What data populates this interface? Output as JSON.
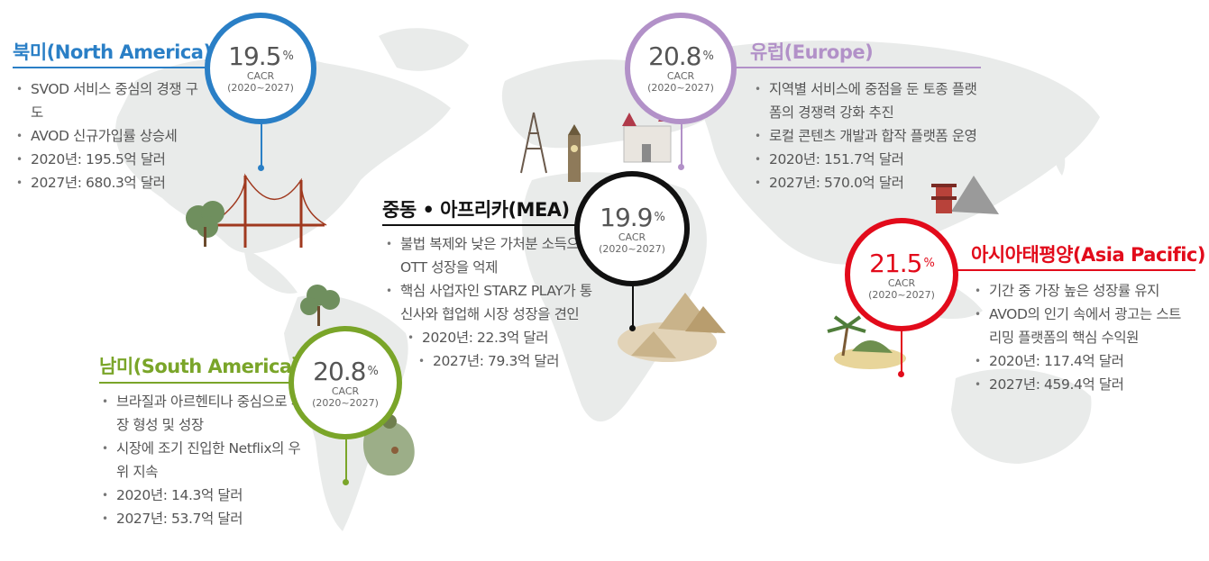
{
  "colors": {
    "north_america": "#2a7fc6",
    "south_america": "#7aa529",
    "mea": "#111111",
    "europe": "#b291c8",
    "asia_pacific": "#e20b1b"
  },
  "north_america": {
    "title": "북미(North America)",
    "pct": "19.5",
    "pct_unit": "%",
    "label": "CACR",
    "period": "(2020~2027)",
    "bullets": [
      "SVOD 서비스 중심의 경쟁 구도",
      "AVOD 신규가입률 상승세",
      "2020년: 195.5억 달러",
      "2027년: 680.3억 달러"
    ]
  },
  "south_america": {
    "title": "남미(South America〉",
    "pct": "20.8",
    "pct_unit": "%",
    "label": "CACR",
    "period": "(2020~2027)",
    "bullets": [
      "브라질과 아르헨티나 중심으로 시장 형성 및 성장",
      "시장에 조기 진입한 Netflix의 우위 지속",
      "2020년: 14.3억 달러",
      "2027년: 53.7억 달러"
    ]
  },
  "mea": {
    "title": "중동 • 아프리카(MEA)",
    "pct": "19.9",
    "pct_unit": "%",
    "label": "CACR",
    "period": "(2020~2027)",
    "bullets": [
      "불법 복제와 낮은 가처분 소득으로 OTT 성장을 억제",
      "핵심 사업자인 STARZ PLAY가 통신사와 협업해 시장 성장을 견인",
      "2020년: 22.3억 달러",
      "2027년: 79.3억 달러"
    ]
  },
  "europe": {
    "title": "유럽(Europe)",
    "pct": "20.8",
    "pct_unit": "%",
    "label": "CACR",
    "period": "(2020~2027)",
    "bullets": [
      "지역별 서비스에 중점을 둔 토종 플랫폼의 경쟁력 강화 추진",
      "로컬 콘텐츠 개발과 합작 플랫폼 운영",
      "2020년: 151.7억 달러",
      "2027년: 570.0억 달러"
    ]
  },
  "asia_pacific": {
    "title": "아시아태평양(Asia Pacific)",
    "pct": "21.5",
    "pct_unit": "%",
    "label": "CACR",
    "period": "(2020~2027)",
    "bullets": [
      "기간 중 가장 높은 성장률 유지",
      "AVOD의 인기 속에서 광고는 스트리밍 플랫폼의 핵심 수익원",
      "2020년: 117.4억 달러",
      "2027년: 459.4억 달러"
    ]
  },
  "illustrations": [
    "world-map",
    "golden-gate-bridge",
    "trees",
    "eiffel-tower",
    "big-ben",
    "castle",
    "pyramids",
    "pagoda",
    "palm-island",
    "deer-forest"
  ]
}
